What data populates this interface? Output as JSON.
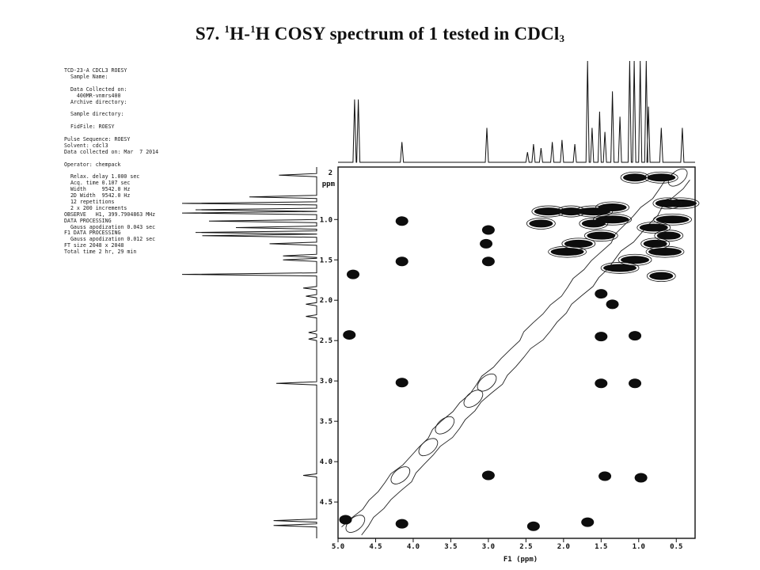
{
  "title": {
    "prefix": "S7. ",
    "sup1": "1",
    "part1": "H-",
    "sup2": "1",
    "part2": "H COSY spectrum of 1 tested in CDCl",
    "sub": "3"
  },
  "metadata_lines": [
    "TCD-23-A CDCL3 ROESY",
    "  Sample Name:",
    "",
    "  Data Collected on:",
    "    400MR-vnmrs400",
    "  Archive directory:",
    "",
    "  Sample directory:",
    "",
    "  FidFile: ROESY",
    "",
    "Pulse Sequence: ROESY",
    "Solvent: cdcl3",
    "Data collected on: Mar  7 2014",
    "",
    "Operator: chempack",
    "",
    "  Relax. delay 1.000 sec",
    "  Acq. time 0.107 sec",
    "  Width     9542.0 Hz",
    "  2D Width  9542.0 Hz",
    "  12 repetitions",
    "  2 x 200 increments",
    "OBSERVE   H1, 399.7904863 MHz",
    "DATA PROCESSING",
    "  Gauss apodization 0.043 sec",
    "F1 DATA PROCESSING",
    "  Gauss apodization 0.012 sec",
    "FT size 2048 x 2048",
    "Total time 2 hr, 29 min"
  ],
  "chart_data": {
    "type": "heatmap",
    "title": "S7. 1H-1H COSY spectrum of 1 tested in CDCl3",
    "xlabel": "F1 (ppm)",
    "ylabel": "ppm",
    "x_reversed": true,
    "y_reversed": true,
    "xlim": [
      5.0,
      0.25
    ],
    "ylim": [
      0.35,
      4.95
    ],
    "x_ticks": [
      "5.0",
      "4.5",
      "4.0",
      "3.5",
      "3.0",
      "2.5",
      "2.0",
      "1.5",
      "1.0",
      "0.5"
    ],
    "y_ticks": [
      "1.0",
      "1.5",
      "2.0",
      "2.5",
      "3.0",
      "3.5",
      "4.0",
      "4.5"
    ],
    "y_top_label": "2",
    "cross_peaks": [
      {
        "x": 4.15,
        "y": 1.02
      },
      {
        "x": 4.15,
        "y": 1.52
      },
      {
        "x": 4.15,
        "y": 3.02
      },
      {
        "x": 4.15,
        "y": 4.77
      },
      {
        "x": 3.0,
        "y": 1.13
      },
      {
        "x": 3.0,
        "y": 1.52
      },
      {
        "x": 3.0,
        "y": 4.17
      },
      {
        "x": 3.03,
        "y": 1.3
      },
      {
        "x": 2.4,
        "y": 4.8
      },
      {
        "x": 1.68,
        "y": 4.75
      },
      {
        "x": 1.5,
        "y": 3.03
      },
      {
        "x": 1.45,
        "y": 4.18
      },
      {
        "x": 1.05,
        "y": 3.03
      },
      {
        "x": 0.97,
        "y": 4.2
      },
      {
        "x": 4.8,
        "y": 1.68
      },
      {
        "x": 4.85,
        "y": 2.43
      },
      {
        "x": 4.9,
        "y": 4.72
      },
      {
        "x": 1.5,
        "y": 1.92
      },
      {
        "x": 1.35,
        "y": 2.05
      },
      {
        "x": 1.5,
        "y": 2.45
      },
      {
        "x": 1.05,
        "y": 2.44
      },
      {
        "x": 1.05,
        "y": 0.48
      },
      {
        "x": 0.7,
        "y": 0.48
      },
      {
        "x": 0.45,
        "y": 0.8
      },
      {
        "x": 0.62,
        "y": 0.8
      },
      {
        "x": 1.35,
        "y": 0.85
      },
      {
        "x": 1.6,
        "y": 0.9
      },
      {
        "x": 1.9,
        "y": 0.9
      },
      {
        "x": 2.2,
        "y": 0.9
      },
      {
        "x": 1.35,
        "y": 1.0
      },
      {
        "x": 1.6,
        "y": 1.05
      },
      {
        "x": 1.8,
        "y": 1.3
      },
      {
        "x": 1.95,
        "y": 1.4
      },
      {
        "x": 2.3,
        "y": 1.05
      },
      {
        "x": 0.8,
        "y": 1.1
      },
      {
        "x": 0.55,
        "y": 1.0
      },
      {
        "x": 0.78,
        "y": 1.3
      },
      {
        "x": 1.05,
        "y": 1.5
      },
      {
        "x": 1.25,
        "y": 1.6
      },
      {
        "x": 0.7,
        "y": 1.7
      },
      {
        "x": 1.5,
        "y": 1.2
      },
      {
        "x": 0.65,
        "y": 1.4
      },
      {
        "x": 0.6,
        "y": 1.2
      }
    ],
    "diagonal_peaks": [
      {
        "x": 0.48,
        "y": 0.48
      },
      {
        "x": 4.17,
        "y": 4.17
      },
      {
        "x": 4.77,
        "y": 4.77
      },
      {
        "x": 3.02,
        "y": 3.02
      },
      {
        "x": 3.2,
        "y": 3.22
      },
      {
        "x": 3.58,
        "y": 3.55
      },
      {
        "x": 3.8,
        "y": 3.82
      }
    ],
    "f1_projection_peaks": [
      {
        "x": 4.78,
        "height": 0.62
      },
      {
        "x": 4.73,
        "height": 0.62
      },
      {
        "x": 4.15,
        "height": 0.2
      },
      {
        "x": 3.02,
        "height": 0.34
      },
      {
        "x": 2.48,
        "height": 0.1
      },
      {
        "x": 2.4,
        "height": 0.18
      },
      {
        "x": 2.3,
        "height": 0.14
      },
      {
        "x": 2.15,
        "height": 0.2
      },
      {
        "x": 2.02,
        "height": 0.22
      },
      {
        "x": 1.85,
        "height": 0.18
      },
      {
        "x": 1.68,
        "height": 1.0
      },
      {
        "x": 1.62,
        "height": 0.34
      },
      {
        "x": 1.52,
        "height": 0.5
      },
      {
        "x": 1.45,
        "height": 0.3
      },
      {
        "x": 1.35,
        "height": 0.7
      },
      {
        "x": 1.25,
        "height": 0.45
      },
      {
        "x": 1.12,
        "height": 1.0
      },
      {
        "x": 1.06,
        "height": 1.0
      },
      {
        "x": 0.98,
        "height": 1.0
      },
      {
        "x": 0.9,
        "height": 1.0
      },
      {
        "x": 0.87,
        "height": 0.55
      },
      {
        "x": 0.7,
        "height": 0.34
      },
      {
        "x": 0.42,
        "height": 0.34
      }
    ],
    "f2_projection_peaks": [
      {
        "y": 0.45,
        "height": 0.28
      },
      {
        "y": 0.72,
        "height": 0.5
      },
      {
        "y": 0.8,
        "height": 1.0
      },
      {
        "y": 0.88,
        "height": 0.9
      },
      {
        "y": 0.92,
        "height": 1.0
      },
      {
        "y": 1.02,
        "height": 0.8
      },
      {
        "y": 1.1,
        "height": 0.6
      },
      {
        "y": 1.16,
        "height": 0.9
      },
      {
        "y": 1.2,
        "height": 0.85
      },
      {
        "y": 1.3,
        "height": 0.35
      },
      {
        "y": 1.45,
        "height": 0.25
      },
      {
        "y": 1.5,
        "height": 0.25
      },
      {
        "y": 1.68,
        "height": 1.0
      },
      {
        "y": 1.85,
        "height": 0.1
      },
      {
        "y": 1.95,
        "height": 0.08
      },
      {
        "y": 2.05,
        "height": 0.08
      },
      {
        "y": 2.2,
        "height": 0.08
      },
      {
        "y": 2.4,
        "height": 0.06
      },
      {
        "y": 2.48,
        "height": 0.06
      },
      {
        "y": 3.03,
        "height": 0.3
      },
      {
        "y": 4.17,
        "height": 0.1
      },
      {
        "y": 4.73,
        "height": 0.32
      },
      {
        "y": 4.79,
        "height": 0.32
      }
    ]
  }
}
